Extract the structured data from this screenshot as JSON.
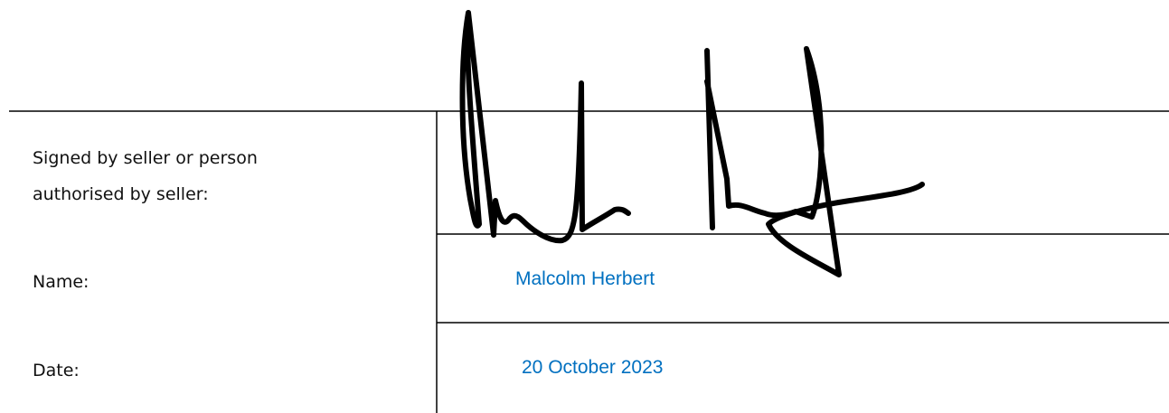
{
  "rows": [
    {
      "label": [
        "Signed by seller or person",
        "authorised by seller:"
      ]
    },
    {
      "label": "Name:",
      "value": "Malcolm Herbert"
    },
    {
      "label": "Date:",
      "value": "20 October 2023"
    }
  ]
}
